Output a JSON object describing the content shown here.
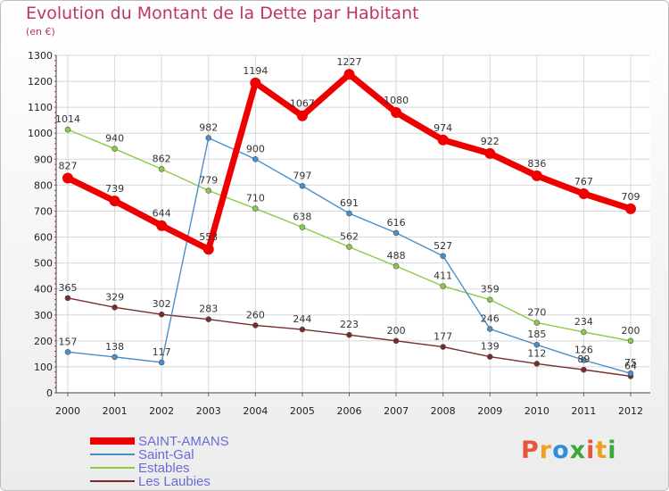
{
  "title": "Evolution du Montant de la Dette par Habitant",
  "subtitle": "(en €)",
  "logo": {
    "text": "Proxiti",
    "colors": [
      "#e8563a",
      "#f0a020",
      "#2e8fd6",
      "#3aa83a",
      "#e8563a",
      "#f0a020",
      "#3aa83a"
    ]
  },
  "chart_data": {
    "type": "line",
    "title": "Evolution du Montant de la Dette par Habitant",
    "ylabel": "(en €)",
    "xlabel": "",
    "ylim": [
      0,
      1300
    ],
    "y_ticks": [
      0,
      100,
      200,
      300,
      400,
      500,
      600,
      700,
      800,
      900,
      1000,
      1100,
      1200,
      1300
    ],
    "categories": [
      "2000",
      "2001",
      "2002",
      "2003",
      "2004",
      "2005",
      "2006",
      "2007",
      "2008",
      "2009",
      "2010",
      "2011",
      "2012"
    ],
    "grid": true,
    "legend_position": "bottom-left",
    "series": [
      {
        "name": "SAINT-AMANS",
        "color": "#ee0000",
        "values": [
          827,
          739,
          644,
          553,
          1194,
          1067,
          1227,
          1080,
          974,
          922,
          836,
          767,
          709
        ]
      },
      {
        "name": "Saint-Gal",
        "color": "#4a8fc9",
        "values": [
          157,
          138,
          117,
          982,
          900,
          797,
          691,
          616,
          527,
          246,
          185,
          126,
          75
        ]
      },
      {
        "name": "Estables",
        "color": "#88cc44",
        "values": [
          1014,
          940,
          862,
          779,
          710,
          638,
          562,
          488,
          411,
          359,
          270,
          234,
          200
        ]
      },
      {
        "name": "Les Laubies",
        "color": "#7a2a2a",
        "values": [
          365,
          329,
          302,
          283,
          260,
          244,
          223,
          200,
          177,
          139,
          112,
          89,
          64
        ]
      }
    ]
  }
}
